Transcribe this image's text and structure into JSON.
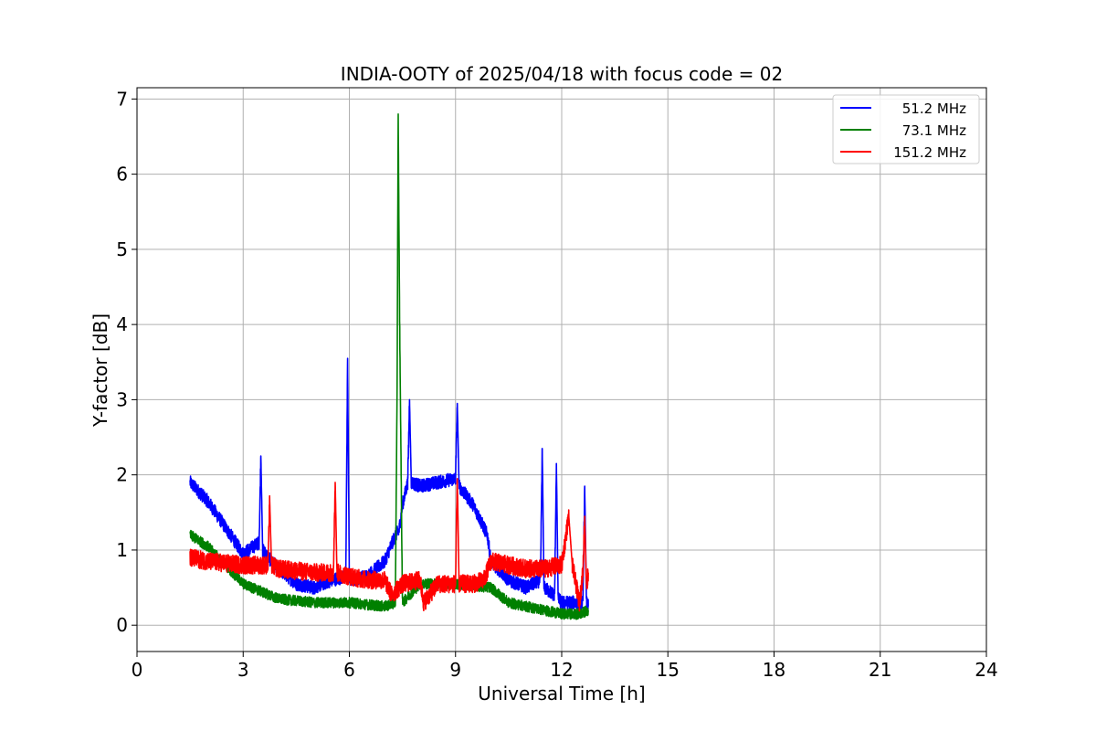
{
  "chart_data": {
    "type": "line",
    "title": "INDIA-OOTY of 2025/04/18 with focus code = 02",
    "xlabel": "Universal Time [h]",
    "ylabel": "Y-factor [dB]",
    "xlim": [
      0,
      24
    ],
    "ylim": [
      -0.35,
      7.15
    ],
    "xticks": [
      "0",
      "3",
      "6",
      "9",
      "12",
      "15",
      "18",
      "21",
      "24"
    ],
    "yticks": [
      "0",
      "1",
      "2",
      "3",
      "4",
      "5",
      "6",
      "7"
    ],
    "grid": true,
    "legend_position": "top-right",
    "series": [
      {
        "name": "51.2 MHz",
        "color": "#0000ff",
        "noise": 0.09,
        "x": [
          1.5,
          2.0,
          2.5,
          3.0,
          3.45,
          3.5,
          3.55,
          3.8,
          4.0,
          4.5,
          5.0,
          5.5,
          5.9,
          5.95,
          6.0,
          6.5,
          7.0,
          7.3,
          7.4,
          7.5,
          7.65,
          7.7,
          7.75,
          8.0,
          8.5,
          9.0,
          9.05,
          9.1,
          9.5,
          9.9,
          10.0,
          10.5,
          11.0,
          11.4,
          11.45,
          11.5,
          11.8,
          11.85,
          11.9,
          12.0,
          12.5,
          12.6,
          12.65,
          12.7,
          12.75
        ],
        "y": [
          1.9,
          1.65,
          1.3,
          0.95,
          1.1,
          2.25,
          1.0,
          0.85,
          0.75,
          0.55,
          0.5,
          0.6,
          0.65,
          3.55,
          0.6,
          0.65,
          0.85,
          1.2,
          1.25,
          1.6,
          1.9,
          3.0,
          1.9,
          1.85,
          1.9,
          1.95,
          2.95,
          1.85,
          1.6,
          1.2,
          0.85,
          0.6,
          0.5,
          0.6,
          2.35,
          0.5,
          0.4,
          2.15,
          0.35,
          0.3,
          0.3,
          0.3,
          1.85,
          0.3,
          0.25
        ]
      },
      {
        "name": "73.1 MHz",
        "color": "#008000",
        "noise": 0.07,
        "x": [
          1.5,
          2.0,
          2.5,
          3.0,
          3.5,
          4.0,
          5.0,
          6.0,
          7.0,
          7.3,
          7.35,
          7.38,
          7.42,
          7.5,
          8.0,
          9.0,
          10.0,
          10.5,
          11.0,
          11.5,
          12.0,
          12.5,
          12.75
        ],
        "y": [
          1.2,
          1.05,
          0.8,
          0.55,
          0.45,
          0.35,
          0.3,
          0.3,
          0.25,
          0.3,
          3.2,
          6.8,
          4.1,
          0.3,
          0.55,
          0.55,
          0.5,
          0.3,
          0.25,
          0.2,
          0.15,
          0.15,
          0.2
        ]
      },
      {
        "name": "151.2 MHz",
        "color": "#ff0000",
        "noise": 0.12,
        "x": [
          1.5,
          2.0,
          3.0,
          3.7,
          3.75,
          3.8,
          4.0,
          5.0,
          5.55,
          5.6,
          5.65,
          6.0,
          6.5,
          7.0,
          7.2,
          7.5,
          8.0,
          8.1,
          8.5,
          9.0,
          9.05,
          9.1,
          9.5,
          9.8,
          10.0,
          10.5,
          11.0,
          11.5,
          12.0,
          12.2,
          12.3,
          12.5,
          12.6,
          12.65,
          12.7,
          12.75
        ],
        "y": [
          0.9,
          0.85,
          0.8,
          0.8,
          1.65,
          0.8,
          0.75,
          0.7,
          0.7,
          1.9,
          0.7,
          0.65,
          0.6,
          0.6,
          0.4,
          0.55,
          0.6,
          0.3,
          0.55,
          0.55,
          1.95,
          0.55,
          0.55,
          0.6,
          0.85,
          0.8,
          0.75,
          0.75,
          0.8,
          1.45,
          0.8,
          0.3,
          0.7,
          1.45,
          0.5,
          0.7
        ]
      }
    ]
  }
}
